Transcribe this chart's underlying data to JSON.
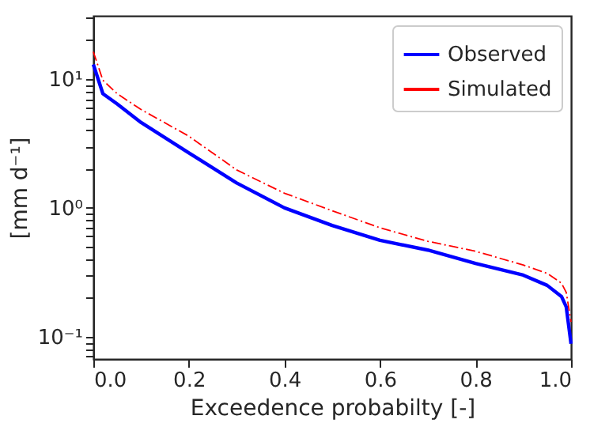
{
  "chart_data": {
    "type": "line",
    "xlabel": "Exceedence probabilty [-]",
    "ylabel": "[mm d⁻¹]",
    "log": "y",
    "xlim": [
      0,
      1
    ],
    "xticks": [
      {
        "value": 0,
        "label": "0.0"
      },
      0.2,
      0.4,
      0.6,
      0.8,
      {
        "value": 1,
        "label": "1.0"
      }
    ],
    "ylim": [
      0.067,
      31
    ],
    "yticks": [
      {
        "value": 0.07,
        "label": null
      },
      {
        "value": 0.08,
        "label": null
      },
      {
        "value": 0.09,
        "label": null
      },
      {
        "value": 0.1,
        "label": "10⁻¹"
      },
      {
        "value": 0.2,
        "label": null
      },
      {
        "value": 0.3,
        "label": null
      },
      {
        "value": 0.4,
        "label": null
      },
      {
        "value": 0.5,
        "label": null
      },
      {
        "value": 0.6,
        "label": null
      },
      {
        "value": 0.7,
        "label": null
      },
      {
        "value": 0.8,
        "label": null
      },
      {
        "value": 0.9,
        "label": null
      },
      {
        "value": 1,
        "label": "10⁰"
      },
      {
        "value": 2,
        "label": null
      },
      {
        "value": 3,
        "label": null
      },
      {
        "value": 4,
        "label": null
      },
      {
        "value": 5,
        "label": null
      },
      {
        "value": 6,
        "label": null
      },
      {
        "value": 7,
        "label": null
      },
      {
        "value": 8,
        "label": null
      },
      {
        "value": 9,
        "label": null
      },
      {
        "value": 10,
        "label": "10¹"
      },
      {
        "value": 20,
        "label": null
      },
      {
        "value": 30,
        "label": null
      }
    ],
    "x": [
      0,
      0.02,
      0.05,
      0.1,
      0.2,
      0.3,
      0.4,
      0.5,
      0.6,
      0.7,
      0.8,
      0.9,
      0.95,
      0.98,
      0.99,
      1.0
    ],
    "series": [
      {
        "name": "Observed",
        "color": "#0000ff",
        "line_style": "solid",
        "values": [
          13,
          7.7,
          6.4,
          4.6,
          2.67,
          1.56,
          1.0,
          0.73,
          0.56,
          0.47,
          0.37,
          0.3,
          0.25,
          0.205,
          0.17,
          0.088
        ]
      },
      {
        "name": "Simulated",
        "color": "#ff0000",
        "line_style": "dashed",
        "values": [
          16.3,
          9.8,
          7.7,
          5.8,
          3.6,
          1.97,
          1.3,
          0.95,
          0.7,
          0.55,
          0.46,
          0.36,
          0.31,
          0.26,
          0.22,
          0.13
        ]
      }
    ],
    "legend": "top right",
    "grid": false,
    "marker": "none"
  }
}
